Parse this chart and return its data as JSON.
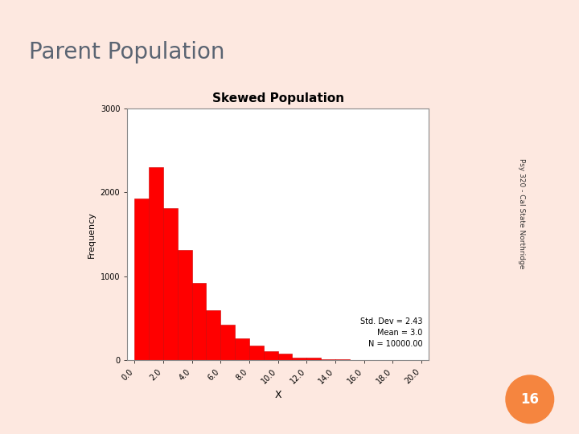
{
  "title": "Parent Population",
  "chart_title": "Skewed Population",
  "xlabel": "X",
  "ylabel": "Frequency",
  "mean": 3.0,
  "std_dev": 2.43,
  "N": 10000,
  "bar_color": "#FF0000",
  "bar_edge_color": "#CC0000",
  "annotation_line1": "Std. Dev = 2.43",
  "annotation_line2": "Mean = 3.0",
  "annotation_line3": "N = 10000.00",
  "xlim": [
    -0.5,
    20.5
  ],
  "ylim": [
    0,
    3000
  ],
  "yticks": [
    0,
    1000,
    2000,
    3000
  ],
  "xticks": [
    0,
    2,
    4,
    6,
    8,
    10,
    12,
    14,
    16,
    18,
    20
  ],
  "side_text": "Psy 320 - Cal State Northridge",
  "page_num": "16",
  "page_circle_color": "#F5853F",
  "slide_bg": "#FDE8E0",
  "right_bar_color": "#F5C4B0",
  "right_bar2_color": "#F5A888",
  "plot_bg": "#FFFFFF",
  "title_color": "#5a6472",
  "tick_label_color": "#333333",
  "spine_color": "#888888",
  "gamma_shape": 1.5,
  "gamma_scale": 2.0,
  "random_seed": 42
}
